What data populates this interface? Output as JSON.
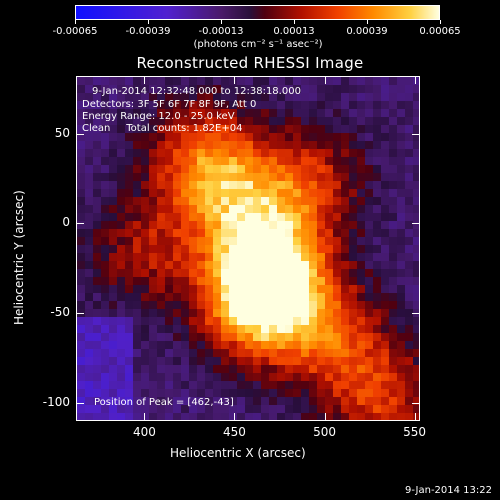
{
  "colorbar": {
    "tick_labels": [
      "-0.00065",
      "-0.00039",
      "-0.00013",
      "0.00013",
      "0.00039",
      "0.00065"
    ],
    "tick_values": [
      -0.00065,
      -0.00039,
      -0.00013,
      0.00013,
      0.00039,
      0.00065
    ],
    "units": "(photons cm⁻² s⁻¹ asec⁻²)",
    "colors": [
      "#1010ff",
      "#5020d0",
      "#4a1a6a",
      "#500010",
      "#f04000",
      "#ffffe0"
    ]
  },
  "title": "Reconstructed RHESSI Image",
  "annotations": {
    "time_range": "9-Jan-2014 12:32:48.000 to 12:38:18.000",
    "detectors": "Detectors: 3F 5F 6F 7F 8F 9F, Att 0",
    "energy": "Energy Range: 12.0 - 25.0 keV",
    "clean": "Clean     Total counts: 1.82E+04",
    "peak": "Position of Peak = [462,-43]"
  },
  "axes": {
    "xlabel": "Heliocentric X (arcsec)",
    "ylabel": "Heliocentric Y (arcsec)",
    "xticks": [
      "400",
      "450",
      "500",
      "550"
    ],
    "yticks": [
      "50",
      "0",
      "-50",
      "-100"
    ],
    "xlim": [
      362,
      553
    ],
    "ylim": [
      -110,
      82
    ]
  },
  "footer": "9-Jan-2014 13:22",
  "chart_data": {
    "type": "heatmap",
    "title": "Reconstructed RHESSI Image",
    "xlabel": "Heliocentric X (arcsec)",
    "ylabel": "Heliocentric Y (arcsec)",
    "xlim": [
      362,
      553
    ],
    "ylim": [
      -110,
      82
    ],
    "colorbar_range": [
      -0.00065,
      0.00065
    ],
    "peak_position": [
      462,
      -43
    ],
    "sources": [
      {
        "x": 462,
        "y": -43,
        "rel_intensity": 1.0
      },
      {
        "x": 470,
        "y": -20,
        "rel_intensity": 0.85
      },
      {
        "x": 448,
        "y": 15,
        "rel_intensity": 0.6
      },
      {
        "x": 430,
        "y": 40,
        "rel_intensity": 0.55
      },
      {
        "x": 490,
        "y": 25,
        "rel_intensity": 0.5
      },
      {
        "x": 500,
        "y": -60,
        "rel_intensity": 0.55
      },
      {
        "x": 530,
        "y": -95,
        "rel_intensity": 0.55
      },
      {
        "x": 400,
        "y": -15,
        "rel_intensity": 0.4
      }
    ]
  }
}
